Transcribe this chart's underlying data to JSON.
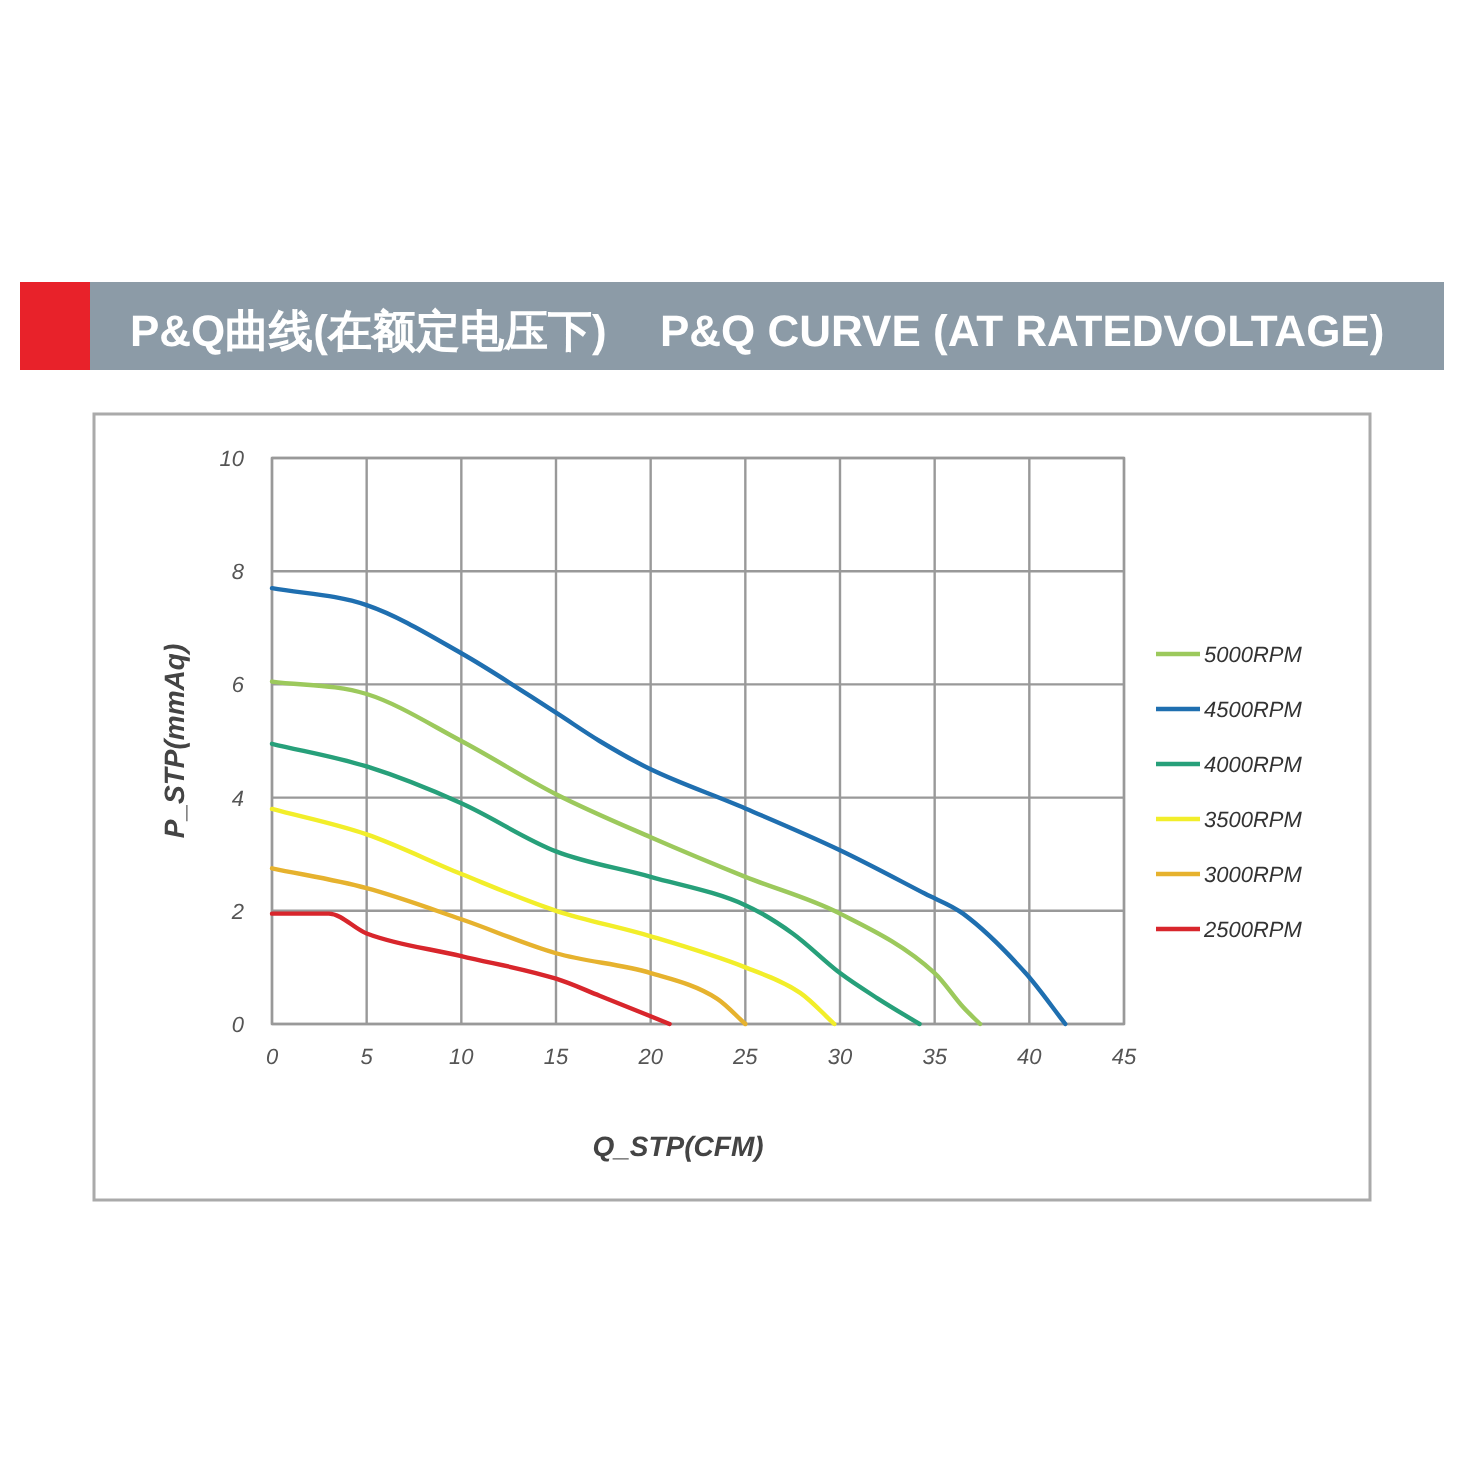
{
  "chart_data": {
    "type": "line",
    "title": "P&Q曲线(在额定电压下)",
    "subtitle": "P&Q CURVE (AT RATEDVOLTAGE)",
    "xlabel": "Q_STP(CFM)",
    "ylabel": "P_STP(mmAq)",
    "xlim": [
      0,
      45
    ],
    "xticks": [
      0,
      5,
      10,
      15,
      20,
      25,
      30,
      35,
      40,
      45
    ],
    "ylim": [
      0,
      10
    ],
    "yticks": [
      0,
      2,
      4,
      6,
      8,
      10
    ],
    "grid": true,
    "legend": "right",
    "marker": "none",
    "line_style": "solid",
    "series": [
      {
        "name": "5000RPM",
        "color": "#9cc95c",
        "x": [
          0,
          5,
          10,
          15,
          20,
          25,
          30,
          35,
          36.5,
          37.4
        ],
        "values": [
          6.05,
          5.83,
          5.0,
          4.06,
          3.3,
          2.6,
          1.95,
          0.9,
          0.3,
          0
        ]
      },
      {
        "name": "4500RPM",
        "color": "#1f6fb0",
        "x": [
          0,
          5,
          10,
          15,
          17.3,
          20,
          24.7,
          30,
          34.5,
          36.5,
          39.8,
          41.9
        ],
        "values": [
          7.7,
          7.4,
          6.55,
          5.5,
          5.0,
          4.5,
          3.85,
          3.07,
          2.3,
          1.95,
          0.9,
          0
        ]
      },
      {
        "name": "4000RPM",
        "color": "#27a07a",
        "x": [
          0,
          5,
          10,
          15,
          20,
          25,
          27.5,
          30,
          32,
          34.2
        ],
        "values": [
          4.95,
          4.55,
          3.9,
          3.05,
          2.6,
          2.1,
          1.6,
          0.9,
          0.45,
          0
        ]
      },
      {
        "name": "3500RPM",
        "color": "#f2ee2a",
        "x": [
          0,
          5,
          10,
          15,
          20,
          25,
          27.9,
          29.7
        ],
        "values": [
          3.8,
          3.35,
          2.65,
          2.0,
          1.55,
          1.0,
          0.55,
          0
        ]
      },
      {
        "name": "3000RPM",
        "color": "#e6b22e",
        "x": [
          0,
          5,
          10,
          15,
          20,
          23.5,
          25
        ],
        "values": [
          2.75,
          2.4,
          1.85,
          1.25,
          0.9,
          0.45,
          0
        ]
      },
      {
        "name": "2500RPM",
        "color": "#d8262c",
        "x": [
          0,
          3,
          5,
          10,
          15,
          17.3,
          21
        ],
        "values": [
          1.95,
          1.95,
          1.6,
          1.2,
          0.8,
          0.5,
          0
        ]
      }
    ]
  }
}
